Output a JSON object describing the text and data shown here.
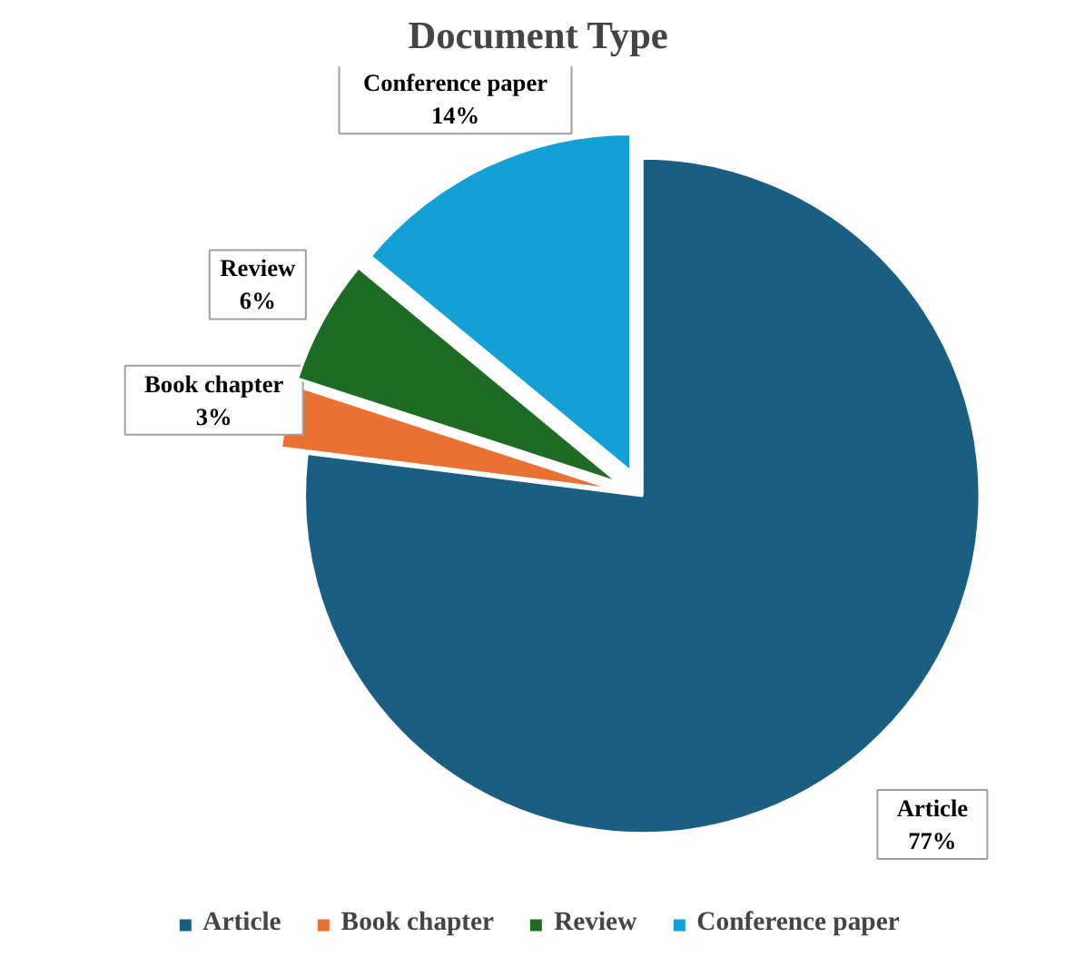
{
  "chart_data": {
    "type": "pie",
    "title": "Document Type",
    "categories": [
      "Article",
      "Book chapter",
      "Review",
      "Conference paper"
    ],
    "values": [
      77,
      3,
      6,
      14
    ],
    "colors": [
      "#1a5f82",
      "#e97132",
      "#1e6b24",
      "#12a0d7"
    ],
    "value_labels": [
      "77%",
      "3%",
      "6%",
      "14%"
    ],
    "legend": "bottom"
  }
}
